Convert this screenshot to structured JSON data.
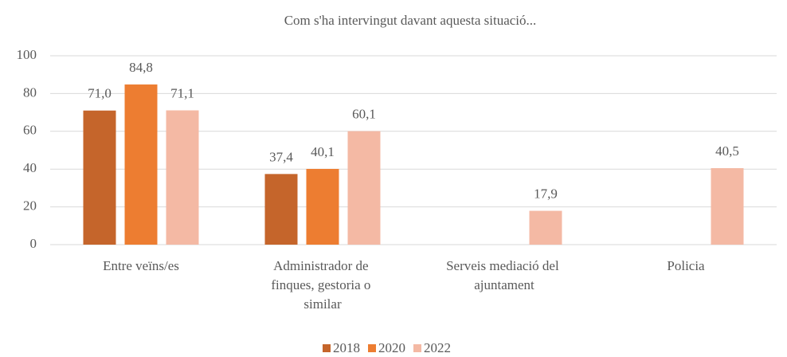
{
  "chart_data": {
    "type": "bar",
    "title": "Com s'ha intervingut davant aquesta situació...",
    "categories": [
      "Entre veïns/es",
      "Administrador de finques, gestoria o similar",
      "Serveis mediació del ajuntament",
      "Policia"
    ],
    "series": [
      {
        "name": "2018",
        "color": "#c5652b",
        "values": [
          71.0,
          37.4,
          null,
          null
        ],
        "value_labels": [
          "71,0",
          "37,4",
          null,
          null
        ]
      },
      {
        "name": "2020",
        "color": "#ed7d31",
        "values": [
          84.8,
          40.1,
          null,
          null
        ],
        "value_labels": [
          "84,8",
          "40,1",
          null,
          null
        ]
      },
      {
        "name": "2022",
        "color": "#f4b9a4",
        "values": [
          71.1,
          60.1,
          17.9,
          40.5
        ],
        "value_labels": [
          "71,1",
          "60,1",
          "17,9",
          "40,5"
        ]
      }
    ],
    "ylim": [
      0,
      100
    ],
    "yticks": [
      0,
      20,
      40,
      60,
      80,
      100
    ],
    "grid": true,
    "legend": "bottom"
  }
}
